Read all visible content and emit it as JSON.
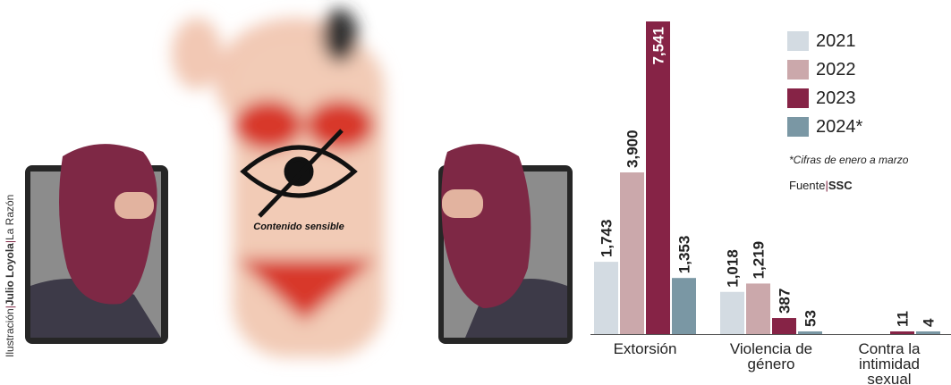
{
  "illustration": {
    "credit_prefix": "Ilustración",
    "credit_author": "Julio Loyola",
    "credit_outlet": "La Razón",
    "sensitive_label": "Contenido sensible"
  },
  "legend": [
    {
      "label": "2021",
      "color": "#d3dbe2"
    },
    {
      "label": "2022",
      "color": "#cba8ab"
    },
    {
      "label": "2023",
      "color": "#862346"
    },
    {
      "label": "2024*",
      "color": "#7a97a4"
    }
  ],
  "note": "*Cifras de enero a marzo",
  "source": {
    "prefix": "Fuente",
    "name": "SSC"
  },
  "chart_data": {
    "type": "bar",
    "categories": [
      "Extorsión",
      "Violencia de género",
      "Contra la intimidad sexual"
    ],
    "category_lines": [
      [
        "Extorsión"
      ],
      [
        "Violencia de",
        "género"
      ],
      [
        "Contra la",
        "intimidad",
        "sexual"
      ]
    ],
    "series": [
      {
        "name": "2021",
        "color": "#d3dbe2",
        "values": [
          1743,
          1018,
          null
        ],
        "labels": [
          "1,743",
          "1,018",
          ""
        ]
      },
      {
        "name": "2022",
        "color": "#cba8ab",
        "values": [
          3900,
          1219,
          null
        ],
        "labels": [
          "3,900",
          "1,219",
          ""
        ]
      },
      {
        "name": "2023",
        "color": "#862346",
        "values": [
          7541,
          387,
          11
        ],
        "labels": [
          "7,541",
          "387",
          "11"
        ]
      },
      {
        "name": "2024*",
        "color": "#7a97a4",
        "values": [
          1353,
          53,
          4
        ],
        "labels": [
          "1,353",
          "53",
          "4"
        ]
      }
    ],
    "ylim": [
      0,
      7541
    ],
    "grid": false,
    "legend_position": "top-right"
  }
}
